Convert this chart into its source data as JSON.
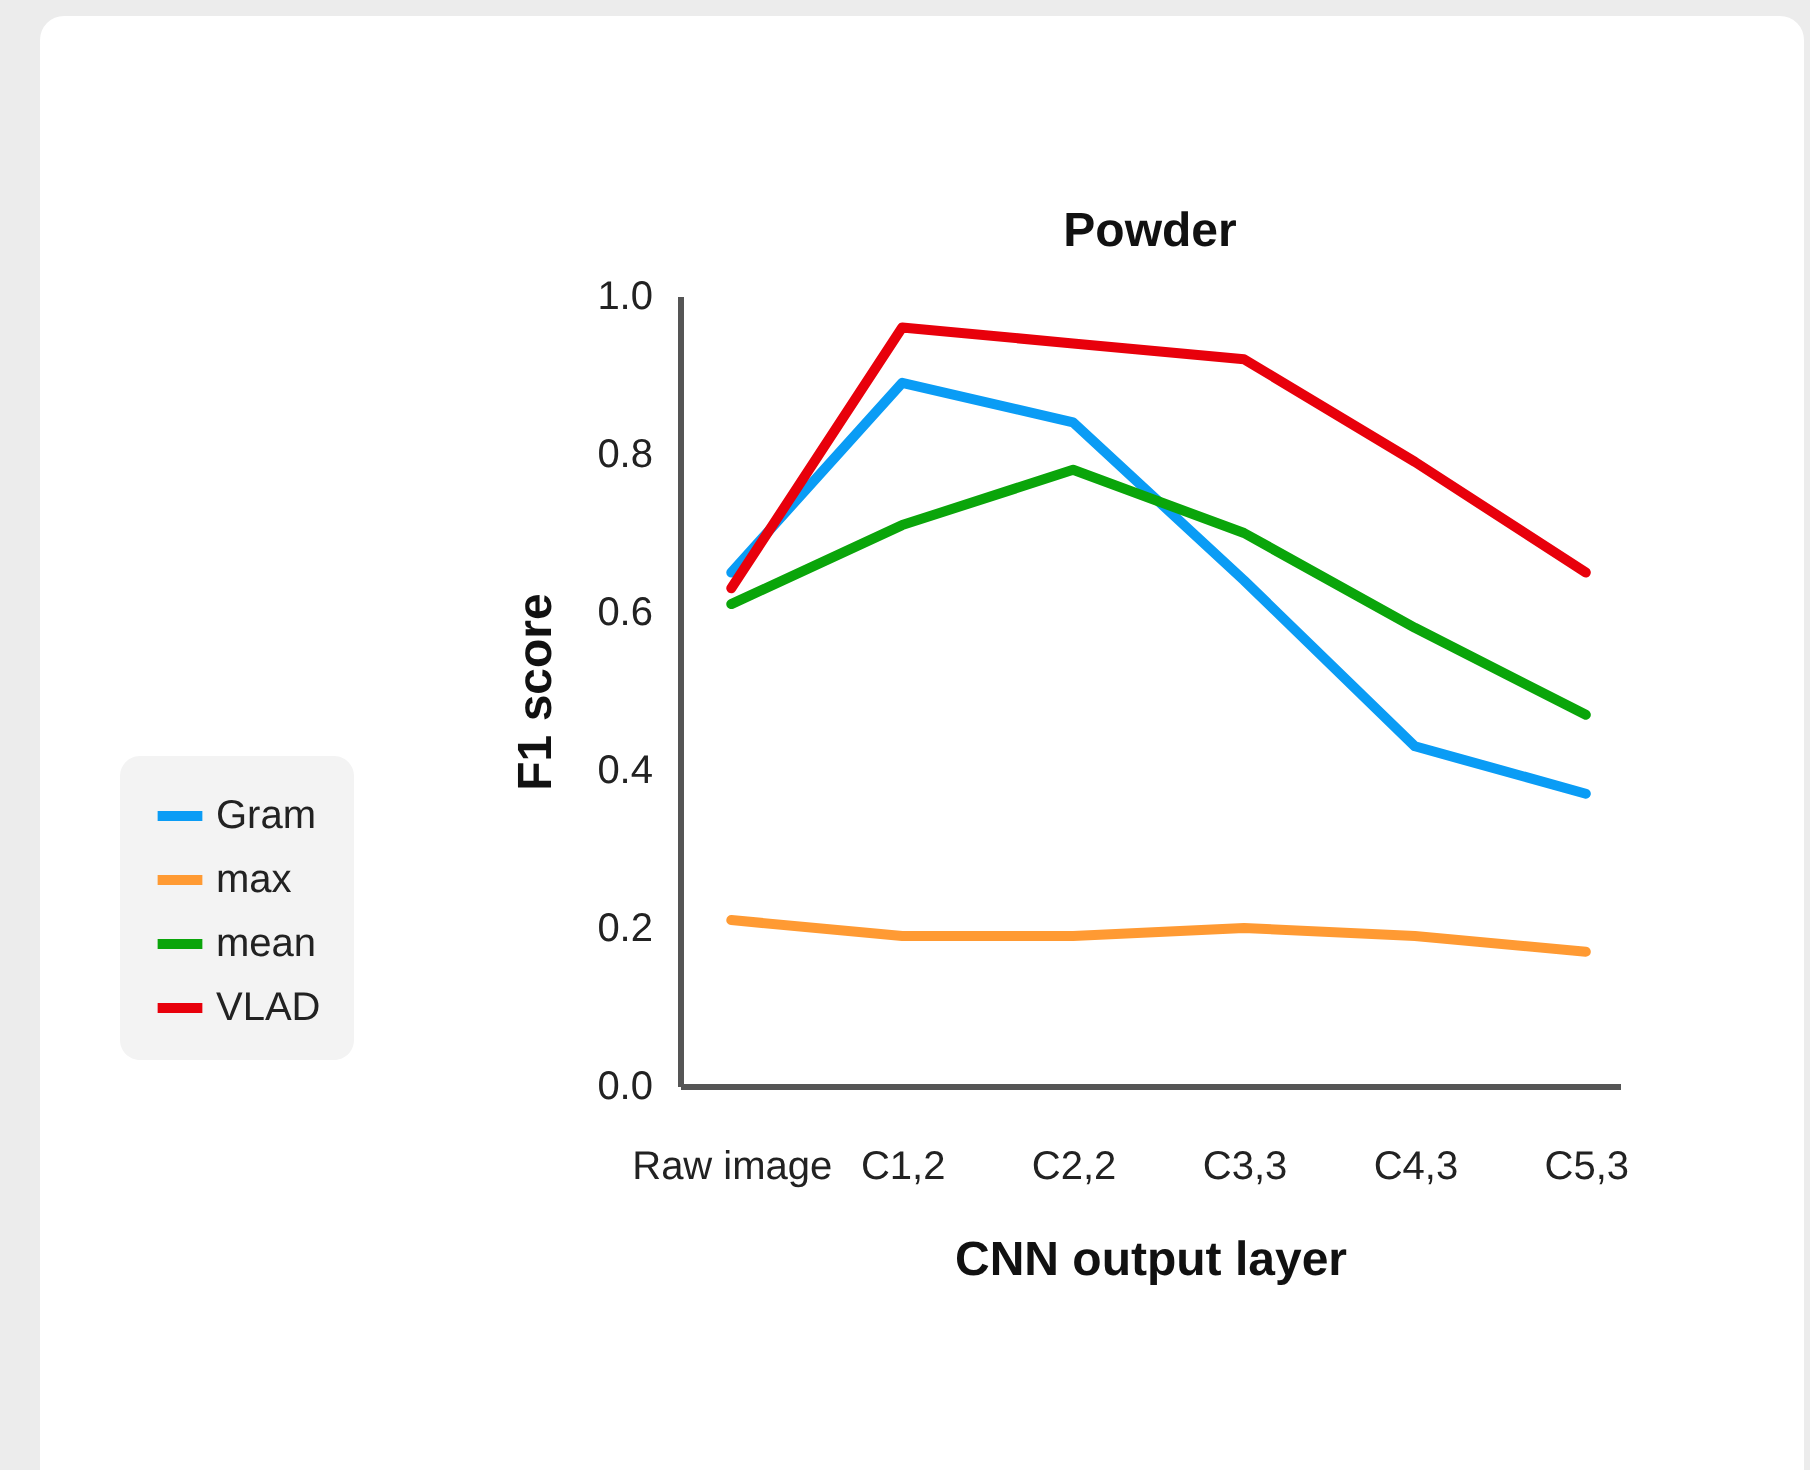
{
  "chart_data": {
    "type": "line",
    "title": "Powder",
    "xlabel": "CNN output layer",
    "ylabel": "F1 score",
    "categories": [
      "Raw image",
      "C1,2",
      "C2,2",
      "C3,3",
      "C4,3",
      "C5,3"
    ],
    "series": [
      {
        "name": "Gram",
        "color": "#0a9cf5",
        "values": [
          0.65,
          0.89,
          0.84,
          0.64,
          0.43,
          0.37
        ]
      },
      {
        "name": "max",
        "color": "#ff9a33",
        "values": [
          0.21,
          0.19,
          0.19,
          0.2,
          0.19,
          0.17
        ]
      },
      {
        "name": "mean",
        "color": "#0aa50a",
        "values": [
          0.61,
          0.71,
          0.78,
          0.7,
          0.58,
          0.47
        ]
      },
      {
        "name": "VLAD",
        "color": "#e8000b",
        "values": [
          0.63,
          0.96,
          0.94,
          0.92,
          0.79,
          0.65
        ]
      }
    ],
    "ylim": [
      0,
      1
    ],
    "yticks": [
      {
        "value": 0,
        "label": "0.0"
      },
      0.2,
      0.4,
      0.6,
      0.8,
      {
        "value": 1,
        "label": "1.0"
      }
    ],
    "grid": false,
    "legend": "left",
    "marker": "none",
    "line_style": "solid"
  }
}
